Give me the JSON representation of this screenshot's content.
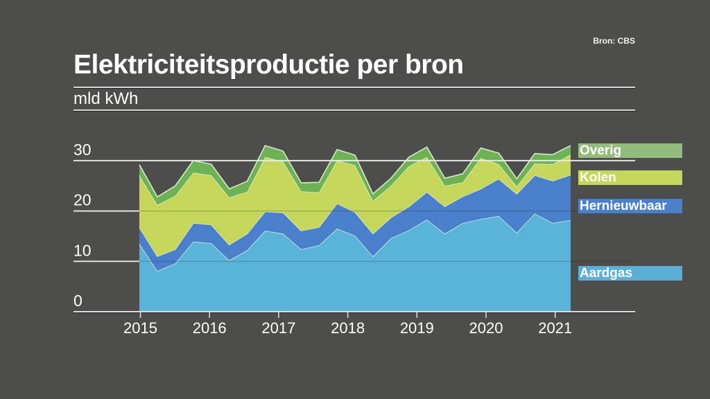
{
  "source": "Bron: CBS",
  "title": "Elektriciteitsproductie per bron",
  "unit": "mld kWh",
  "chart_data": {
    "type": "area",
    "stacked": true,
    "title": "Elektriciteitsproductie per bron",
    "ylabel": "mld kWh",
    "xlabel": "",
    "ylim": [
      0,
      30
    ],
    "yticks": [
      0,
      10,
      20,
      30
    ],
    "xticks": [
      "2015",
      "2016",
      "2017",
      "2018",
      "2019",
      "2020",
      "2021"
    ],
    "x_unit": "quarter",
    "x": [
      "2015 Q1",
      "2015 Q2",
      "2015 Q3",
      "2015 Q4",
      "2016 Q1",
      "2016 Q2",
      "2016 Q3",
      "2016 Q4",
      "2017 Q1",
      "2017 Q2",
      "2017 Q3",
      "2017 Q4",
      "2018 Q1",
      "2018 Q2",
      "2018 Q3",
      "2018 Q4",
      "2019 Q1",
      "2019 Q2",
      "2019 Q3",
      "2019 Q4",
      "2020 Q1",
      "2020 Q2",
      "2020 Q3",
      "2020 Q4",
      "2021 Q1"
    ],
    "grid": true,
    "legend_position": "right",
    "series": [
      {
        "name": "Aardgas",
        "color": "#5ab4da",
        "values": [
          13.5,
          8.1,
          9.6,
          13.9,
          13.6,
          10.2,
          12.2,
          16.1,
          15.5,
          12.4,
          13.2,
          16.5,
          15.1,
          11.0,
          14.6,
          16.2,
          18.3,
          15.5,
          17.6,
          18.4,
          19.0,
          15.7,
          19.5,
          17.6,
          18.2
        ]
      },
      {
        "name": "Hernieuwbaar",
        "color": "#4a7fcb",
        "values": [
          3.3,
          2.9,
          2.8,
          3.7,
          3.7,
          3.1,
          3.3,
          3.8,
          4.2,
          3.7,
          3.6,
          5.0,
          4.7,
          4.5,
          4.1,
          4.7,
          5.5,
          5.4,
          5.3,
          6.0,
          7.4,
          7.7,
          7.6,
          8.4,
          9.0
        ]
      },
      {
        "name": "Kolen",
        "color": "#c5d65a",
        "values": [
          10.3,
          10.2,
          10.6,
          10.0,
          9.8,
          9.4,
          8.3,
          10.8,
          10.1,
          7.8,
          6.9,
          8.5,
          9.3,
          6.5,
          6.3,
          8.0,
          6.9,
          4.1,
          2.8,
          6.1,
          2.9,
          1.5,
          2.3,
          3.3,
          4.0
        ]
      },
      {
        "name": "Overig",
        "color": "#6db356",
        "values": [
          2.1,
          1.6,
          2.0,
          2.4,
          2.2,
          1.7,
          2.1,
          2.3,
          2.1,
          1.7,
          2.0,
          2.2,
          2.0,
          1.4,
          1.5,
          1.8,
          2.0,
          1.5,
          1.7,
          2.0,
          2.2,
          1.5,
          2.0,
          1.9,
          1.8
        ]
      }
    ]
  }
}
